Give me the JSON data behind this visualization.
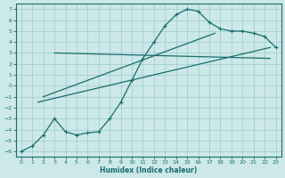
{
  "xlabel": "Humidex (Indice chaleur)",
  "bg_color": "#cce8e8",
  "grid_color": "#99cccc",
  "line_color": "#1a6b6b",
  "xlim": [
    -0.5,
    23.5
  ],
  "ylim": [
    -6.5,
    7.5
  ],
  "xticks": [
    0,
    1,
    2,
    3,
    4,
    5,
    6,
    7,
    8,
    9,
    10,
    11,
    12,
    13,
    14,
    15,
    16,
    17,
    18,
    19,
    20,
    21,
    22,
    23
  ],
  "yticks": [
    -6,
    -5,
    -4,
    -3,
    -2,
    -1,
    0,
    1,
    2,
    3,
    4,
    5,
    6,
    7
  ],
  "curve_x": [
    0,
    1,
    2,
    3,
    4,
    5,
    6,
    7,
    8,
    9,
    10,
    11,
    12,
    13,
    14,
    15,
    16,
    17,
    18,
    19,
    20,
    21,
    22,
    23
  ],
  "curve_y": [
    -6.0,
    -5.5,
    -4.5,
    -3.0,
    -4.2,
    -4.5,
    -4.3,
    -4.2,
    -3.0,
    -1.5,
    0.5,
    2.5,
    4.0,
    5.5,
    6.5,
    7.0,
    6.8,
    5.8,
    5.2,
    5.0,
    5.0,
    4.8,
    4.5,
    3.5
  ],
  "line1_x": [
    3.0,
    22.5
  ],
  "line1_y": [
    3.0,
    2.5
  ],
  "line2_x": [
    2.0,
    17.5
  ],
  "line2_y": [
    -1.0,
    4.8
  ],
  "line3_x": [
    1.5,
    22.5
  ],
  "line3_y": [
    -1.5,
    3.5
  ]
}
